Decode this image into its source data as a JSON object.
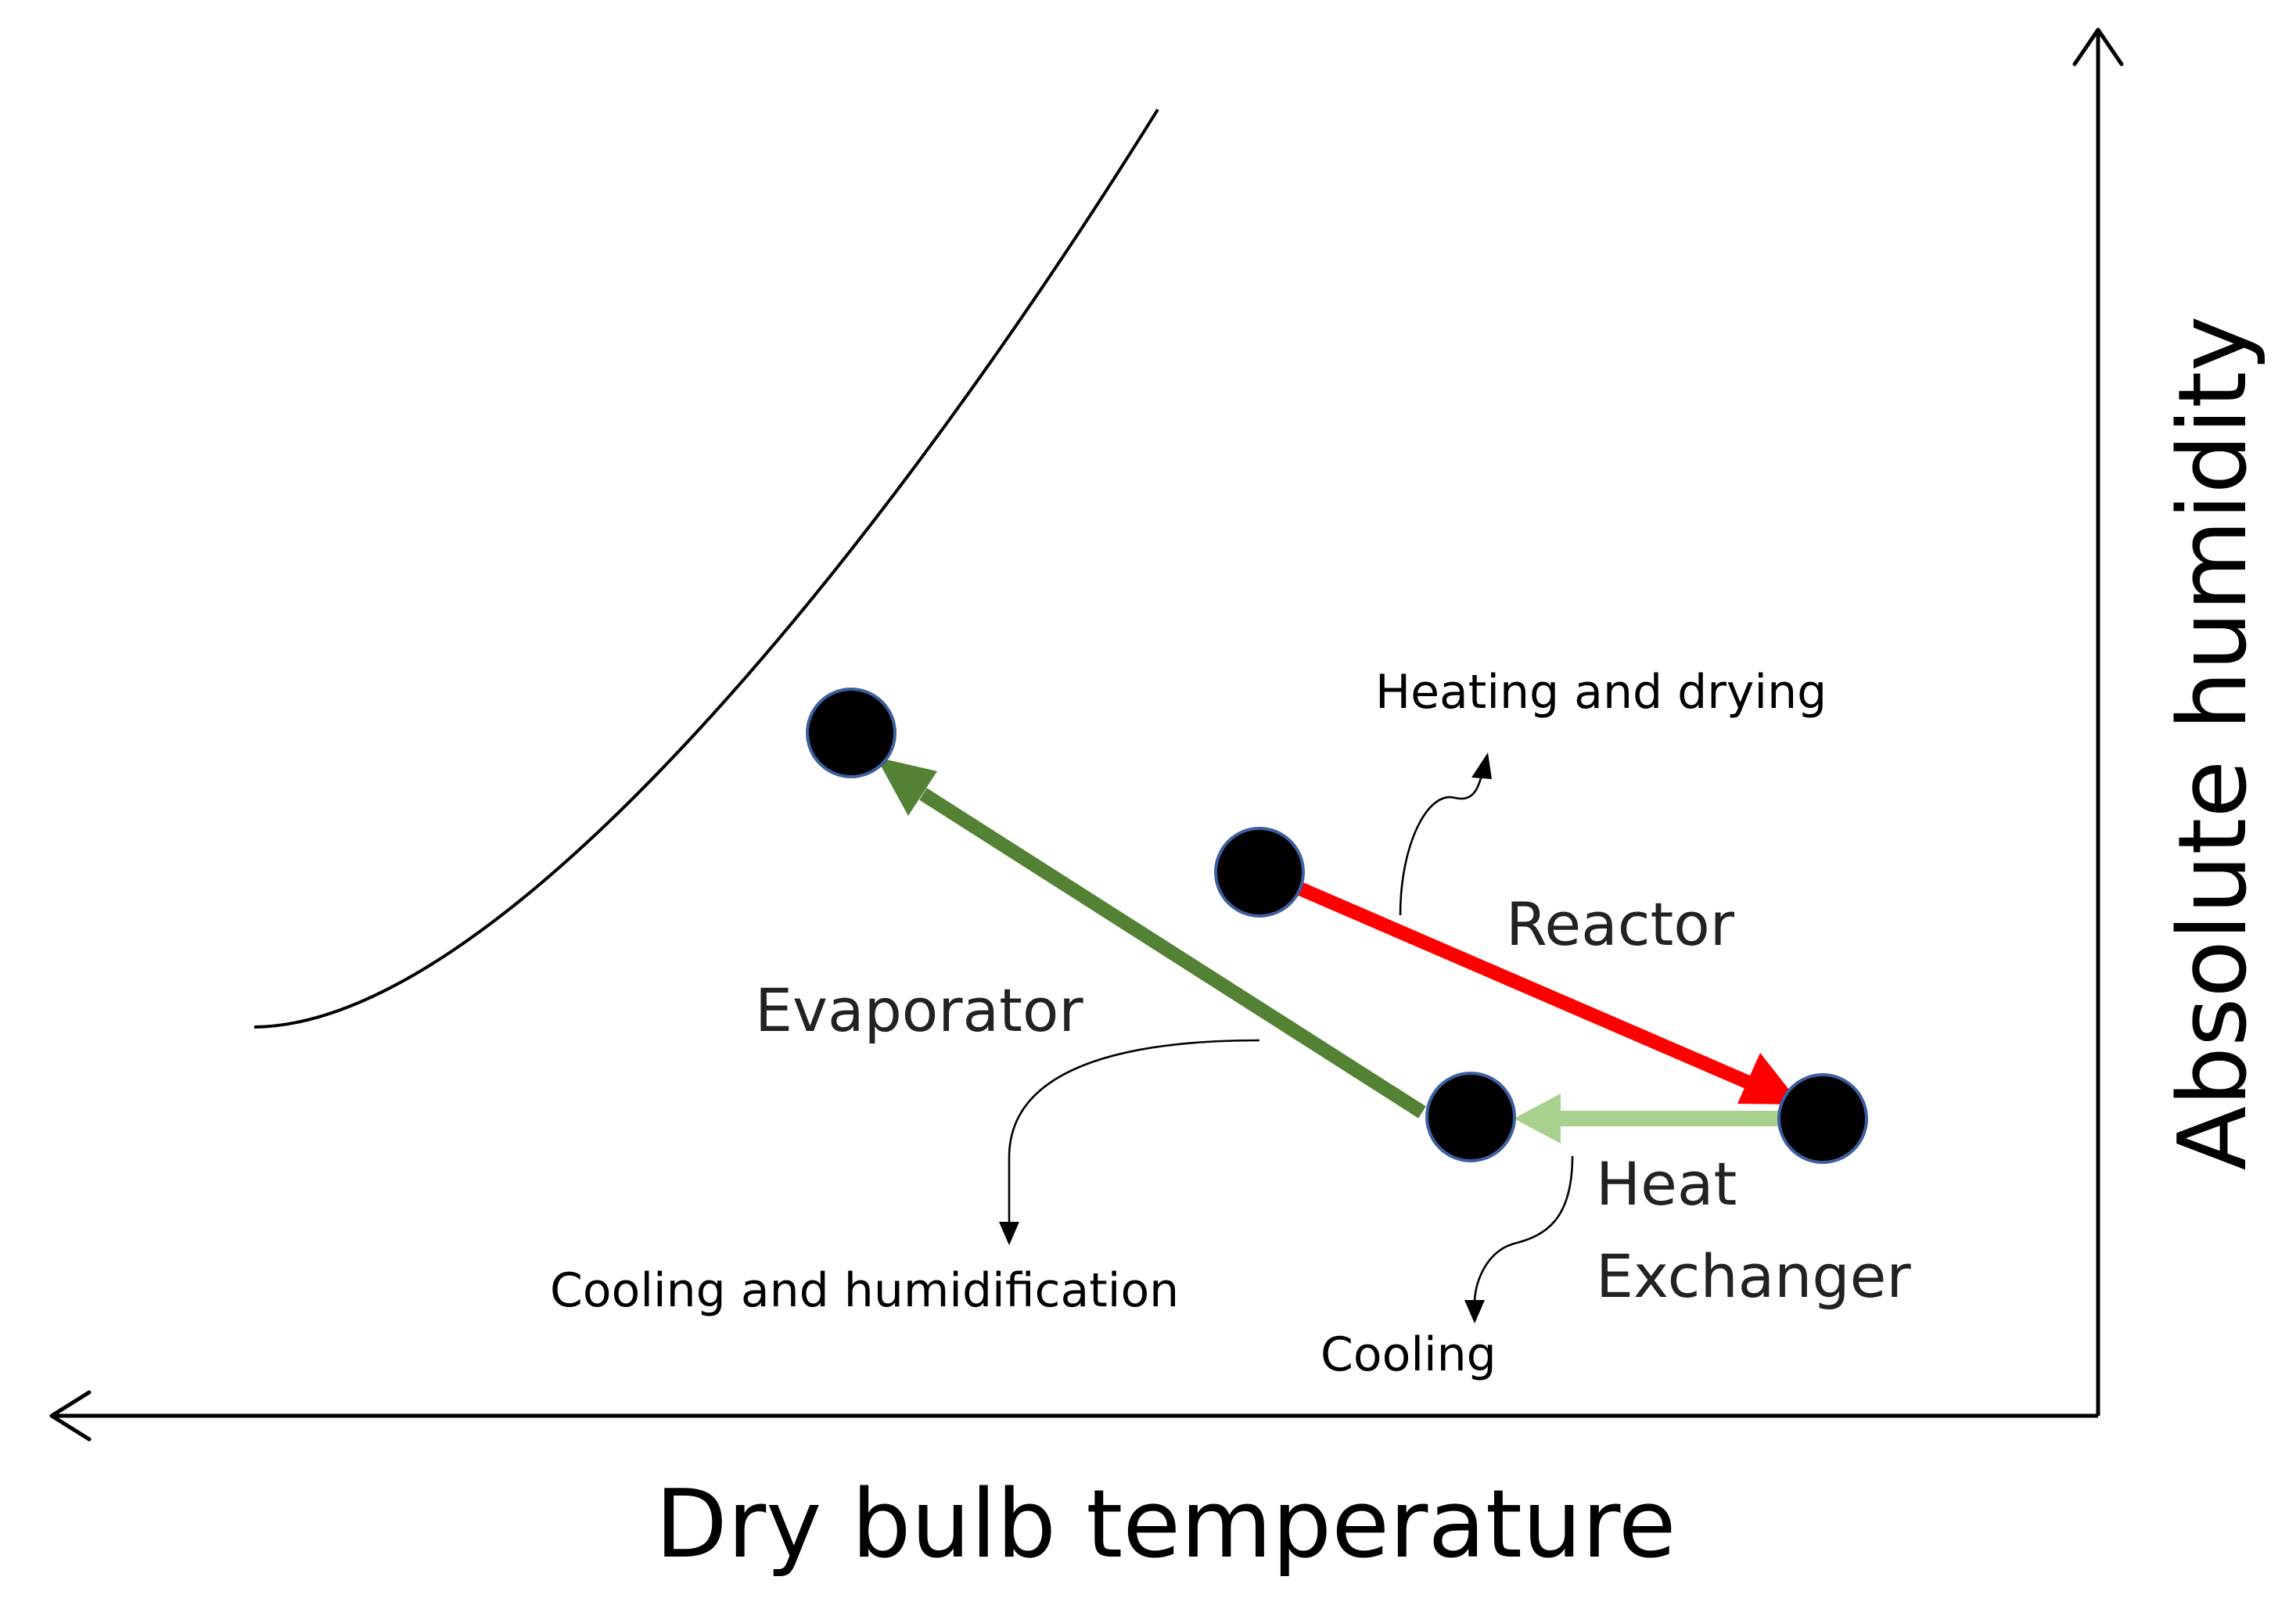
{
  "axes": {
    "x_label": "Dry bulb temperature",
    "y_label": "Absolute humidity"
  },
  "processes": {
    "reactor": {
      "name": "Reactor",
      "description": "Heating and drying",
      "color": "#ff0000"
    },
    "heat_exchanger": {
      "name_line1": "Heat",
      "name_line2": "Exchanger",
      "description": "Cooling",
      "color": "#a9d18e"
    },
    "evaporator": {
      "name": "Evaporator",
      "description": "Cooling and humidification",
      "color": "#548235"
    }
  },
  "colors": {
    "state_point": "#000000",
    "state_point_outline": "#3c5fa0",
    "saturation_curve": "#000000"
  }
}
